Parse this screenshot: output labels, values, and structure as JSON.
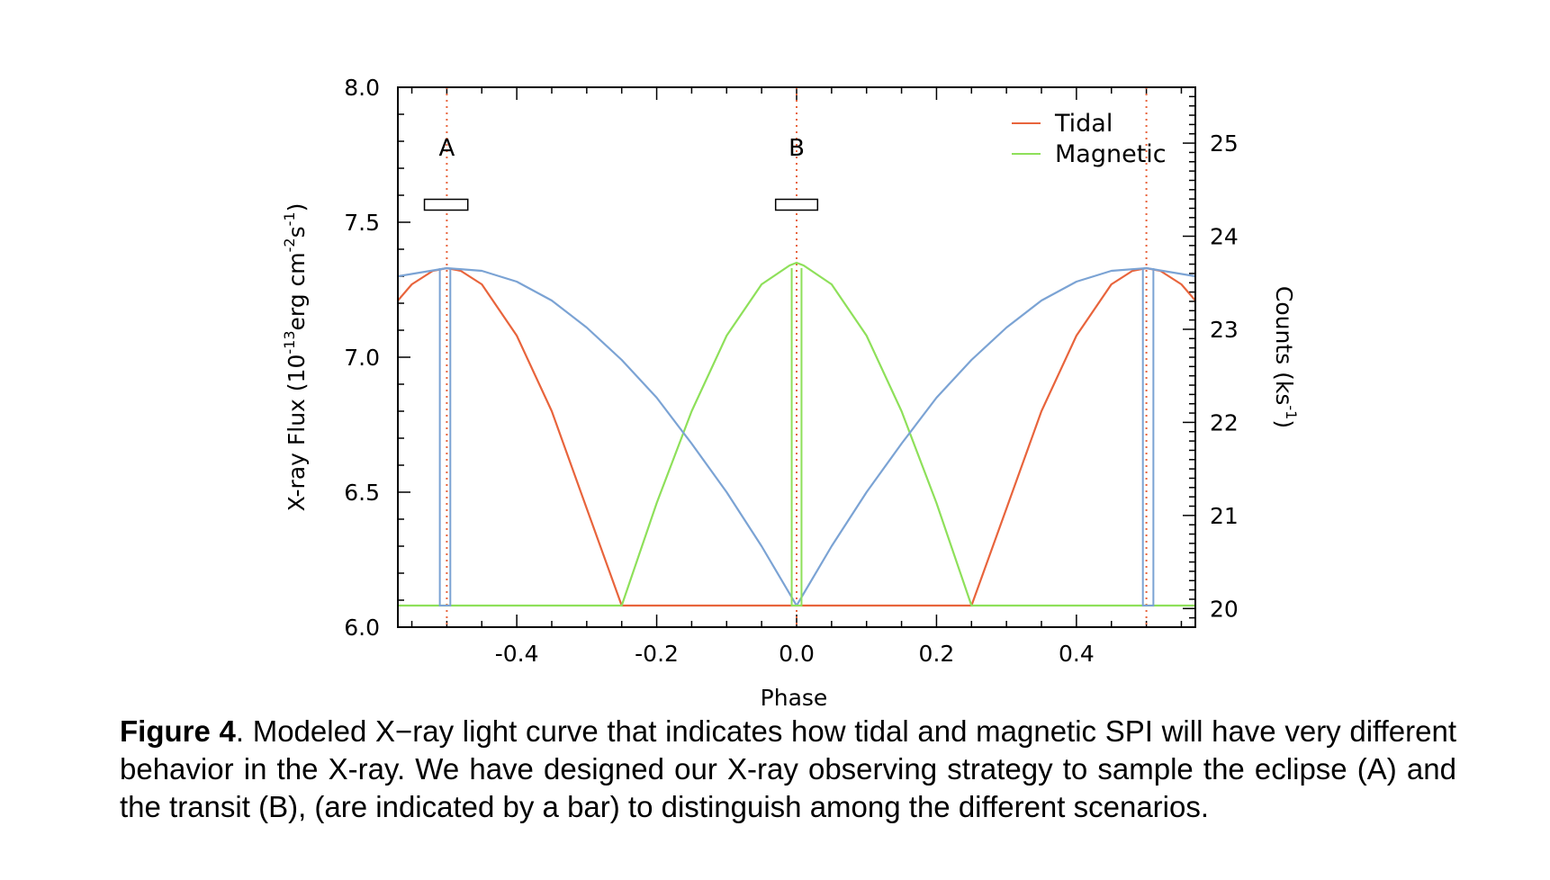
{
  "chart_data": {
    "type": "line",
    "xlabel": "Phase",
    "ylabel_left_prefix": "X-ray Flux (10",
    "ylabel_left_exp1": "-13",
    "ylabel_left_mid": "erg cm",
    "ylabel_left_exp2": "-2",
    "ylabel_left_mid2": "s",
    "ylabel_left_exp3": "-1",
    "ylabel_left_suffix": ")",
    "ylabel_right_prefix": "Counts (ks",
    "ylabel_right_exp": "-1",
    "ylabel_right_suffix": ")",
    "xlim": [
      -0.57,
      0.57
    ],
    "ylim": [
      6.0,
      8.0
    ],
    "right_ylim": [
      19.8,
      25.6
    ],
    "x_ticks": [
      -0.4,
      -0.2,
      0.0,
      0.2,
      0.4
    ],
    "x_tick_labels": [
      "-0.4",
      "-0.2",
      "0.0",
      "0.2",
      "0.4"
    ],
    "y_ticks": [
      6.0,
      6.5,
      7.0,
      7.5,
      8.0
    ],
    "y_tick_labels": [
      "6.0",
      "6.5",
      "7.0",
      "7.5",
      "8.0"
    ],
    "right_ticks": [
      20,
      21,
      22,
      23,
      24,
      25
    ],
    "right_tick_labels": [
      "20",
      "21",
      "22",
      "23",
      "24",
      "25"
    ],
    "legend_position": "top-right",
    "series": [
      {
        "name": "Tidal",
        "color": "#e8643c",
        "x": [
          -0.57,
          -0.55,
          -0.52,
          -0.5,
          -0.48,
          -0.45,
          -0.4,
          -0.35,
          -0.3,
          -0.25,
          0.0,
          0.25,
          0.3,
          0.35,
          0.4,
          0.45,
          0.48,
          0.5,
          0.52,
          0.55,
          0.57
        ],
        "y": [
          7.21,
          7.27,
          7.32,
          7.33,
          7.32,
          7.27,
          7.08,
          6.8,
          6.44,
          6.08,
          6.08,
          6.08,
          6.44,
          6.8,
          7.08,
          7.27,
          7.32,
          7.33,
          7.32,
          7.27,
          7.21
        ]
      },
      {
        "name": "Magnetic",
        "color": "#8ee05a",
        "x": [
          -0.57,
          -0.25,
          -0.2,
          -0.15,
          -0.1,
          -0.05,
          -0.01,
          0.0,
          0.01,
          0.05,
          0.1,
          0.15,
          0.2,
          0.25,
          0.57
        ],
        "y": [
          6.08,
          6.08,
          6.46,
          6.8,
          7.08,
          7.27,
          7.34,
          7.35,
          7.34,
          7.27,
          7.08,
          6.8,
          6.46,
          6.08,
          6.08
        ]
      },
      {
        "name": "",
        "color": "#7ba3d4",
        "x": [
          -0.57,
          -0.5,
          -0.45,
          -0.4,
          -0.35,
          -0.3,
          -0.25,
          -0.2,
          -0.15,
          -0.1,
          -0.05,
          0.0,
          0.05,
          0.1,
          0.15,
          0.2,
          0.25,
          0.3,
          0.35,
          0.4,
          0.45,
          0.5,
          0.57
        ],
        "y": [
          7.3,
          7.33,
          7.32,
          7.28,
          7.21,
          7.11,
          6.99,
          6.85,
          6.68,
          6.5,
          6.3,
          6.08,
          6.3,
          6.5,
          6.68,
          6.85,
          6.99,
          7.11,
          7.21,
          7.28,
          7.32,
          7.33,
          7.3
        ]
      }
    ],
    "eclipse_dips": [
      {
        "x_start": -0.51,
        "x_end": -0.495,
        "y_bottom": 6.08
      },
      {
        "x_start": -0.007,
        "x_end": 0.007,
        "y_bottom": 6.08
      },
      {
        "x_start": 0.495,
        "x_end": 0.51,
        "y_bottom": 6.08
      }
    ],
    "markers": [
      {
        "label": "A",
        "x": -0.5,
        "bar_x": [
          -0.532,
          -0.47
        ],
        "bar_y": [
          7.545,
          7.585
        ]
      },
      {
        "label": "B",
        "x": 0.0,
        "bar_x": [
          -0.03,
          0.03
        ],
        "bar_y": [
          7.545,
          7.585
        ]
      }
    ],
    "dotted_line_color": "#e8643c",
    "vertical_dotted_lines": [
      -0.5,
      0.0,
      0.5
    ]
  },
  "caption": {
    "label": "Figure 4",
    "text": ". Modeled X−ray light curve that indicates how tidal and magnetic SPI will have very different behavior in the X-ray. We have designed our X-ray observing strategy to sample the eclipse (A) and the transit (B), (are indicated by a bar) to distinguish among the different scenarios."
  }
}
